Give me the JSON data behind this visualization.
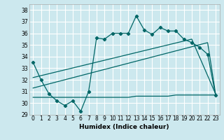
{
  "xlabel": "Humidex (Indice chaleur)",
  "bg_color": "#cce8ee",
  "grid_color": "#ffffff",
  "line_color": "#006666",
  "ylim": [
    29,
    38.5
  ],
  "xlim": [
    -0.5,
    23.5
  ],
  "yticks": [
    29,
    30,
    31,
    32,
    33,
    34,
    35,
    36,
    37,
    38
  ],
  "xticks": [
    0,
    1,
    2,
    3,
    4,
    5,
    6,
    7,
    8,
    9,
    10,
    11,
    12,
    13,
    14,
    15,
    16,
    17,
    18,
    19,
    20,
    21,
    22,
    23
  ],
  "series1_x": [
    0,
    1,
    2,
    3,
    4,
    5,
    6,
    7,
    8,
    9,
    10,
    11,
    12,
    13,
    14,
    15,
    16,
    17,
    18,
    19,
    20,
    21,
    22,
    23
  ],
  "series1_y": [
    33.5,
    32.0,
    30.8,
    30.2,
    29.8,
    30.2,
    29.3,
    31.0,
    35.6,
    35.5,
    36.0,
    36.0,
    36.0,
    37.5,
    36.3,
    35.9,
    36.5,
    36.2,
    36.2,
    35.5,
    35.2,
    34.8,
    34.2,
    30.7
  ],
  "series2_x": [
    0,
    1,
    2,
    3,
    4,
    5,
    6,
    7,
    8,
    9,
    10,
    11,
    12,
    13,
    14,
    15,
    16,
    17,
    18,
    19,
    20,
    21,
    22,
    23
  ],
  "series2_y": [
    30.5,
    30.5,
    30.5,
    30.5,
    30.5,
    30.5,
    30.5,
    30.5,
    30.5,
    30.5,
    30.5,
    30.5,
    30.5,
    30.6,
    30.6,
    30.6,
    30.6,
    30.6,
    30.7,
    30.7,
    30.7,
    30.7,
    30.7,
    30.7
  ],
  "series3_x": [
    0,
    22,
    23
  ],
  "series3_y": [
    31.3,
    35.2,
    30.8
  ],
  "series4_x": [
    0,
    20,
    23
  ],
  "series4_y": [
    32.2,
    35.5,
    30.8
  ],
  "xlabel_fontsize": 6.5,
  "tick_fontsize": 5.5
}
